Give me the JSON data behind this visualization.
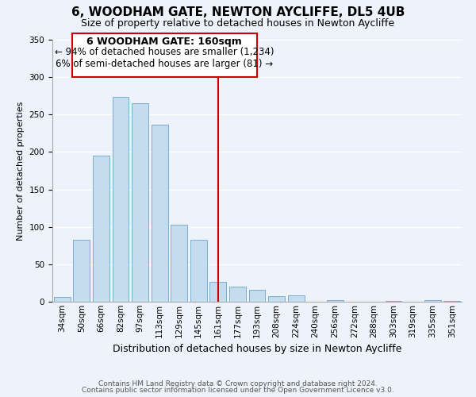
{
  "title": "6, WOODHAM GATE, NEWTON AYCLIFFE, DL5 4UB",
  "subtitle": "Size of property relative to detached houses in Newton Aycliffe",
  "xlabel": "Distribution of detached houses by size in Newton Aycliffe",
  "ylabel": "Number of detached properties",
  "bar_labels": [
    "34sqm",
    "50sqm",
    "66sqm",
    "82sqm",
    "97sqm",
    "113sqm",
    "129sqm",
    "145sqm",
    "161sqm",
    "177sqm",
    "193sqm",
    "208sqm",
    "224sqm",
    "240sqm",
    "256sqm",
    "272sqm",
    "288sqm",
    "303sqm",
    "319sqm",
    "335sqm",
    "351sqm"
  ],
  "bar_values": [
    6,
    83,
    195,
    274,
    265,
    236,
    103,
    83,
    27,
    20,
    16,
    7,
    8,
    0,
    2,
    0,
    0,
    1,
    0,
    2,
    1
  ],
  "bar_color": "#c5dcee",
  "bar_edge_color": "#7aaed4",
  "vline_x_idx": 8,
  "vline_color": "#cc0000",
  "annotation_title": "6 WOODHAM GATE: 160sqm",
  "annotation_line1": "← 94% of detached houses are smaller (1,234)",
  "annotation_line2": "6% of semi-detached houses are larger (81) →",
  "annotation_box_color": "#ffffff",
  "annotation_box_edge_color": "#cc0000",
  "footer_line1": "Contains HM Land Registry data © Crown copyright and database right 2024.",
  "footer_line2": "Contains public sector information licensed under the Open Government Licence v3.0.",
  "ylim": [
    0,
    350
  ],
  "background_color": "#eef2fa",
  "grid_color": "#ffffff",
  "title_fontsize": 11,
  "subtitle_fontsize": 9,
  "ylabel_fontsize": 8,
  "xlabel_fontsize": 9,
  "tick_fontsize": 7.5,
  "footer_fontsize": 6.5
}
